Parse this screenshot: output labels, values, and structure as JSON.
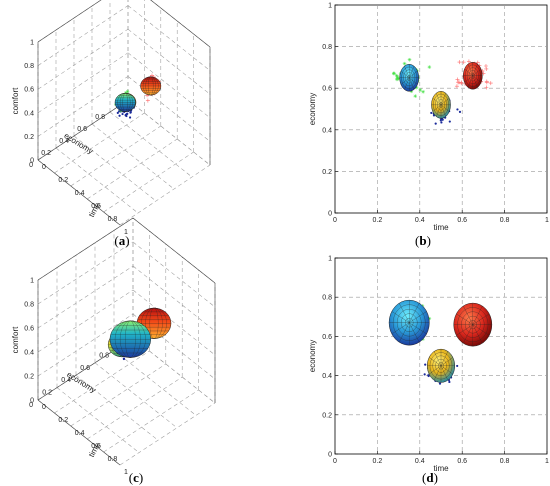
{
  "chart_data": [
    {
      "panel": "a",
      "type": "scatter",
      "view": "3d",
      "caption": "(a)",
      "xlabel": "time",
      "ylabel": "economy",
      "zlabel": "comfort",
      "xticks": [
        "0",
        "0.2",
        "0.4",
        "0.6",
        "0.8",
        "1"
      ],
      "yticks": [
        "0",
        "0.2",
        "0.4",
        "0.6",
        "0.8",
        "1"
      ],
      "zticks": [
        "0",
        "0.2",
        "0.4",
        "0.6",
        "0.8",
        "1"
      ],
      "xlim": [
        0,
        1
      ],
      "ylim": [
        0,
        1
      ],
      "zlim": [
        0,
        1
      ],
      "grid": true,
      "clusters": [
        {
          "color": "#e8342a",
          "marker": "+",
          "center": [
            0.65,
            0.66,
            0.65
          ],
          "radius": 0.06
        },
        {
          "color": "#f2c21f",
          "marker": "dot-blue",
          "center": [
            0.5,
            0.52,
            0.5
          ],
          "radius": 0.06
        },
        {
          "color": "#2f7fc8",
          "marker": "*-green",
          "center": [
            0.35,
            0.65,
            0.35
          ],
          "radius": 0.06
        }
      ]
    },
    {
      "panel": "b",
      "type": "scatter",
      "view": "2d",
      "caption": "(b)",
      "xlabel": "time",
      "ylabel": "economy",
      "xticks": [
        "0",
        "0.2",
        "0.4",
        "0.6",
        "0.8",
        "1"
      ],
      "yticks": [
        "0",
        "0.2",
        "0.4",
        "0.6",
        "0.8",
        "1"
      ],
      "xlim": [
        0,
        1
      ],
      "ylim": [
        0,
        1
      ],
      "grid": true,
      "clusters": [
        {
          "color": "#2f7fc8",
          "center": [
            0.35,
            0.65
          ],
          "rx": 0.045,
          "ry": 0.065
        },
        {
          "color": "#f2c21f",
          "center": [
            0.5,
            0.52
          ],
          "rx": 0.045,
          "ry": 0.065
        },
        {
          "color": "#e8342a",
          "center": [
            0.65,
            0.66
          ],
          "rx": 0.045,
          "ry": 0.065
        }
      ]
    },
    {
      "panel": "c",
      "type": "scatter",
      "view": "3d",
      "caption": "(c)",
      "xlabel": "time",
      "ylabel": "economy",
      "zlabel": "comfort",
      "xticks": [
        "0",
        "0.2",
        "0.4",
        "0.6",
        "0.8",
        "1"
      ],
      "yticks": [
        "0",
        "0.2",
        "0.4",
        "0.6",
        "0.8",
        "1"
      ],
      "zticks": [
        "0",
        "0.2",
        "0.4",
        "0.6",
        "0.8",
        "1"
      ],
      "xlim": [
        0,
        1
      ],
      "ylim": [
        0,
        1
      ],
      "zlim": [
        0,
        1
      ],
      "grid": true,
      "clusters": [
        {
          "color": "#e8342a",
          "center": [
            0.65,
            0.66,
            0.65
          ],
          "radius": 0.1
        },
        {
          "color": "#f2c21f",
          "center": [
            0.5,
            0.45,
            0.5
          ],
          "radius": 0.08
        },
        {
          "color": "#2f7fc8",
          "center": [
            0.35,
            0.67,
            0.35
          ],
          "radius": 0.12
        }
      ]
    },
    {
      "panel": "d",
      "type": "scatter",
      "view": "2d",
      "caption": "(d)",
      "xlabel": "time",
      "ylabel": "economy",
      "xticks": [
        "0",
        "0.2",
        "0.4",
        "0.6",
        "0.8",
        "1"
      ],
      "yticks": [
        "0",
        "0.2",
        "0.4",
        "0.6",
        "0.8",
        "1"
      ],
      "xlim": [
        0,
        1
      ],
      "ylim": [
        0,
        1
      ],
      "grid": true,
      "clusters": [
        {
          "color": "#2f7fc8",
          "center": [
            0.35,
            0.67
          ],
          "rx": 0.095,
          "ry": 0.115
        },
        {
          "color": "#e8342a",
          "center": [
            0.65,
            0.66
          ],
          "rx": 0.09,
          "ry": 0.11
        },
        {
          "color": "#f2c21f",
          "center": [
            0.5,
            0.45
          ],
          "rx": 0.065,
          "ry": 0.085
        }
      ]
    }
  ]
}
